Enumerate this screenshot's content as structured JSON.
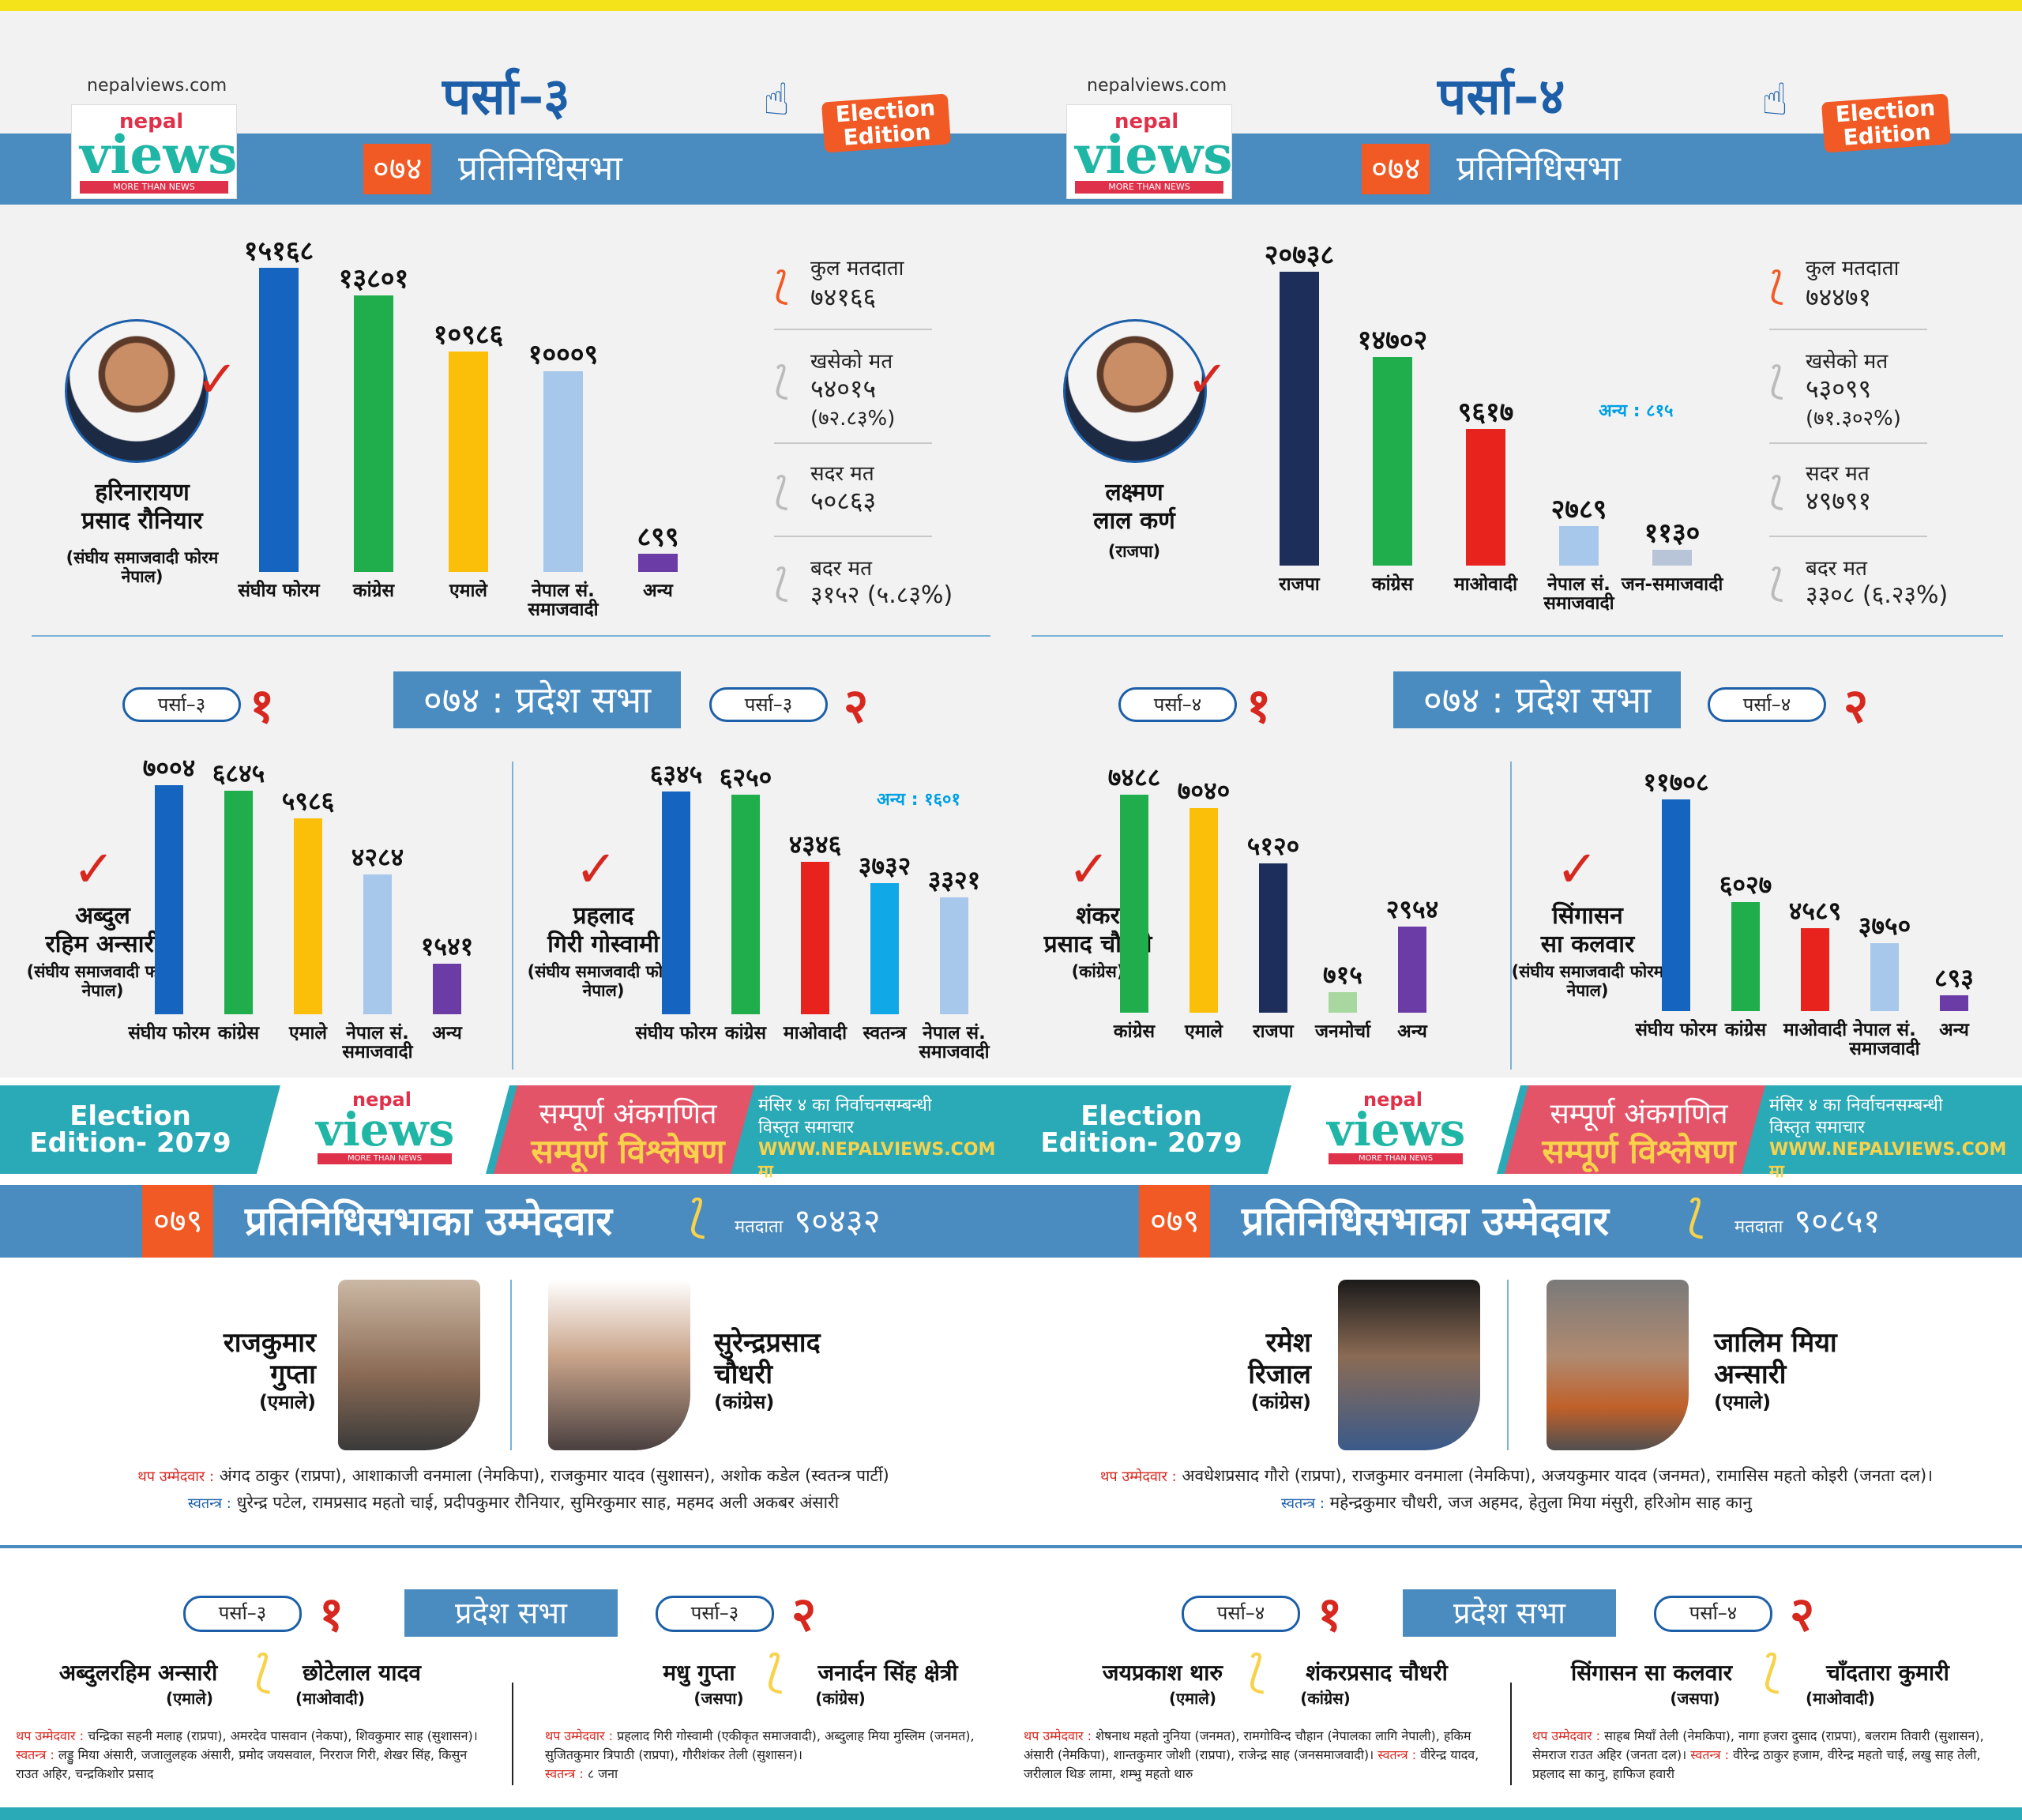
{
  "site": "nepalviews.com",
  "logo": {
    "nepal": "nepal",
    "views": "views",
    "more": "MORE THAN NEWS"
  },
  "badge": "Election Edition",
  "left": {
    "title": "पर्सा–३",
    "year": "०७४",
    "house": "प्रतिनिधिसभा",
    "winner": {
      "name1": "हरिनारायण",
      "name2": "प्रसाद रौनियार",
      "party": "(संघीय समाजवादी फोरम नेपाल)"
    },
    "stats": {
      "l1": "कुल मतदाता",
      "v1": "७४१६६",
      "l2": "खसेको मत",
      "v2": "५४०१५",
      "v2b": "(७२.८३%)",
      "l3": "सदर मत",
      "v3": "५०८६३",
      "l4": "बदर मत",
      "v4": "३१५२ (५.८३%)"
    },
    "pradesh": "०७४ : प्रदेश सभा",
    "p1pill": "पर्सा–३",
    "p1num": "१",
    "p1win": {
      "name1": "अब्दुल",
      "name2": "रहिम अन्सारी",
      "party": "(संघीय समाजवादी फोरम नेपाल)"
    },
    "p2pill": "पर्सा–३",
    "p2num": "२",
    "p2win": {
      "name1": "प्रहलाद",
      "name2": "गिरी गोस्वामी",
      "party": "(संघीय समाजवादी फोरम नेपाल)"
    },
    "p2other": "अन्य : १६०१"
  },
  "right": {
    "title": "पर्सा–४",
    "year": "०७४",
    "house": "प्रतिनिधिसभा",
    "winner": {
      "name1": "लक्ष्मण",
      "name2": "लाल कर्ण",
      "party": "(राजपा)"
    },
    "other": "अन्य : ८१५",
    "stats": {
      "l1": "कुल मतदाता",
      "v1": "७४४७१",
      "l2": "खसेको मत",
      "v2": "५३०९९",
      "v2b": "(७१.३०२%)",
      "l3": "सदर मत",
      "v3": "४९७९१",
      "l4": "बदर मत",
      "v4": "३३०८ (६.२३%)"
    },
    "pradesh": "०७४ : प्रदेश सभा",
    "p1pill": "पर्सा–४",
    "p1num": "१",
    "p1win": {
      "name1": "शंकर",
      "name2": "प्रसाद चौधरी",
      "party": "(कांग्रेस)"
    },
    "p2pill": "पर्सा–४",
    "p2num": "२",
    "p2win": {
      "name1": "सिंगासन",
      "name2": "सा कलवार",
      "party": "(संघीय समाजवादी फोरम नेपाल)"
    }
  },
  "chart_data": [
    {
      "type": "bar",
      "title": "पर्सा–३ ०७४ प्रतिनिधिसभा",
      "categories": [
        "संघीय फोरम",
        "कांग्रेस",
        "एमाले",
        "नेपाल सं. समाजवादी",
        "अन्य"
      ],
      "values": [
        15168,
        13801,
        10986,
        10009,
        899
      ],
      "value_labels": [
        "१५१६८",
        "१३८०१",
        "१०९८६",
        "१०००९",
        "८९९"
      ],
      "colors": [
        "#1565c0",
        "#1fae4b",
        "#fbbf0a",
        "#a7c8ea",
        "#6b3ba6"
      ]
    },
    {
      "type": "bar",
      "title": "पर्सा–३ प्रदेश सभा १",
      "categories": [
        "संघीय फोरम",
        "कांग्रेस",
        "एमाले",
        "नेपाल सं. समाजवादी",
        "अन्य"
      ],
      "values": [
        7004,
        6845,
        5986,
        4284,
        1541
      ],
      "value_labels": [
        "७००४",
        "६८४५",
        "५९८६",
        "४२८४",
        "१५४१"
      ],
      "colors": [
        "#1565c0",
        "#1fae4b",
        "#fbbf0a",
        "#a7c8ea",
        "#6b3ba6"
      ]
    },
    {
      "type": "bar",
      "title": "पर्सा–३ प्रदेश सभा २",
      "categories": [
        "संघीय फोरम",
        "कांग्रेस",
        "माओवादी",
        "स्वतन्त्र",
        "नेपाल सं. समाजवादी"
      ],
      "values": [
        6345,
        6250,
        4346,
        3732,
        3321
      ],
      "value_labels": [
        "६३४५",
        "६२५०",
        "४३४६",
        "३७३२",
        "३३२१"
      ],
      "colors": [
        "#1565c0",
        "#1fae4b",
        "#e8221c",
        "#10a8e6",
        "#a7c8ea"
      ]
    },
    {
      "type": "bar",
      "title": "पर्सा–४ ०७४ प्रतिनिधिसभा",
      "categories": [
        "राजपा",
        "कांग्रेस",
        "माओवादी",
        "नेपाल सं. समाजवादी",
        "जन-समाजवादी"
      ],
      "values": [
        20738,
        14702,
        9617,
        2789,
        1130
      ],
      "value_labels": [
        "२०७३८",
        "१४७०२",
        "९६१७",
        "२७८९",
        "११३०"
      ],
      "colors": [
        "#1e2e5a",
        "#1fae4b",
        "#e8221c",
        "#a7c8ea",
        "#b8c4d8"
      ]
    },
    {
      "type": "bar",
      "title": "पर्सा–४ प्रदेश सभा १",
      "categories": [
        "कांग्रेस",
        "एमाले",
        "राजपा",
        "जनमोर्चा",
        "अन्य"
      ],
      "values": [
        7488,
        7040,
        5120,
        715,
        2954
      ],
      "value_labels": [
        "७४८८",
        "७०४०",
        "५१२०",
        "७१५",
        "२९५४"
      ],
      "colors": [
        "#1fae4b",
        "#fbbf0a",
        "#1e2e5a",
        "#a8d8a0",
        "#6b3ba6"
      ]
    },
    {
      "type": "bar",
      "title": "पर्सा–४ प्रदेश सभा २",
      "categories": [
        "संघीय फोरम",
        "कांग्रेस",
        "माओवादी",
        "नेपाल सं. समाजवादी",
        "अन्य"
      ],
      "values": [
        11708,
        6027,
        4589,
        3750,
        893
      ],
      "value_labels": [
        "११७०८",
        "६०२७",
        "४५८९",
        "३७५०",
        "८९३"
      ],
      "colors": [
        "#1565c0",
        "#1fae4b",
        "#e8221c",
        "#a7c8ea",
        "#6b3ba6"
      ]
    }
  ],
  "banner": {
    "ee1": "Election",
    "ee2": "Edition- 2079",
    "t1": "सम्पूर्ण अंकगणित",
    "t2": "सम्पूर्ण विश्लेषण",
    "r1": "मंसिर ४ का निर्वाचनसम्बन्धी",
    "r2": "विस्तृत समाचार",
    "r3": "WWW.NEPALVIEWS.COM मा"
  },
  "cand_left": {
    "year": "०७९",
    "title": "प्रतिनिधिसभाका उम्मेदवार",
    "voter_label": "मतदाता",
    "voters": "९०४३२",
    "c1": {
      "n1": "राजकुमार",
      "n2": "गुप्ता",
      "party": "(एमाले)"
    },
    "c2": {
      "n1": "सुरेन्द्रप्रसाद",
      "n2": "चौधरी",
      "party": "(कांग्रेस)"
    },
    "extra_label": "थप उम्मेदवार :",
    "extra": "अंगद ठाकुर (राप्रपा), आशाकाजी वनमाला (नेमकिपा), राजकुमार यादव (सुशासन), अशोक कडेल (स्वतन्त्र पार्टी)",
    "ind_label": "स्वतन्त्र :",
    "ind": "धुरेन्द्र पटेल, रामप्रसाद महतो चाई, प्रदीपकुमार रौनियार, सुमिरकुमार साह, महमद अली अकबर अंसारी",
    "pradesh": "प्रदेश सभा",
    "p1pill": "पर्सा–३",
    "p1num": "१",
    "p2pill": "पर्सा–३",
    "p2num": "२",
    "p1a": {
      "n": "अब्दुलरहिम अन्सारी",
      "p": "(एमाले)"
    },
    "p1b": {
      "n": "छोटेलाल यादव",
      "p": "(माओवादी)"
    },
    "p2a": {
      "n": "मधु गुप्ता",
      "p": "(जसपा)"
    },
    "p2b": {
      "n": "जनार्दन सिंह क्षेत्री",
      "p": "(कांग्रेस)"
    },
    "p1extra_label": "थप उम्मेदवार :",
    "p1extra": "चन्द्रिका सहनी मलाह (राप्रपा), अमरदेव पासवान (नेकपा), शिवकुमार साह (सुशासन)।",
    "p1ind_label": "स्वतन्त्र :",
    "p1ind": "लड्डु मिया अंसारी, जजालुलहक अंसारी, प्रमोद जयसवाल, निरराज गिरी, शेखर सिंह, किसुन राउत अहिर, चन्द्रकिशोर प्रसाद",
    "p2extra_label": "थप उम्मेदवार :",
    "p2extra": "प्रहलाद गिरी गोस्वामी (एकीकृत समाजवादी), अब्दुलाह मिया मुस्लिम (जनमत), सुजितकुमार त्रिपाठी (राप्रपा), गौरीशंकर तेली (सुशासन)।",
    "p2ind_label": "स्वतन्त्र :",
    "p2ind": "८ जना"
  },
  "cand_right": {
    "year": "०७९",
    "title": "प्रतिनिधिसभाका उम्मेदवार",
    "voter_label": "मतदाता",
    "voters": "९०८५१",
    "c1": {
      "n1": "रमेश",
      "n2": "रिजाल",
      "party": "(कांग्रेस)"
    },
    "c2": {
      "n1": "जालिम मिया",
      "n2": "अन्सारी",
      "party": "(एमाले)"
    },
    "extra_label": "थप उम्मेदवार :",
    "extra": "अवधेशप्रसाद गौरो (राप्रपा), राजकुमार वनमाला (नेमकिपा), अजयकुमार यादव (जनमत), रामासिस महतो कोइरी (जनता दल)।",
    "ind_label": "स्वतन्त्र :",
    "ind": "महेन्द्रकुमार चौधरी, जज अहमद, हेतुला मिया मंसुरी, हरिओम साह कानु",
    "pradesh": "प्रदेश सभा",
    "p1pill": "पर्सा–४",
    "p1num": "१",
    "p2pill": "पर्सा–४",
    "p2num": "२",
    "p1a": {
      "n": "जयप्रकाश थारु",
      "p": "(एमाले)"
    },
    "p1b": {
      "n": "शंकरप्रसाद चौधरी",
      "p": "(कांग्रेस)"
    },
    "p2a": {
      "n": "सिंगासन सा कलवार",
      "p": "(जसपा)"
    },
    "p2b": {
      "n": "चाँदतारा कुमारी",
      "p": "(माओवादी)"
    },
    "p1extra_label": "थप उम्मेदवार :",
    "p1extra": "शेषनाथ महतो नुनिया (जनमत), रामगोविन्द चौहान (नेपालका लागि नेपाली), हकिम अंसारी (नेमकिपा), शान्तकुमार जोशी (राप्रपा), राजेन्द्र साह (जनसमाजवादी)।",
    "p1ind_label": "स्वतन्त्र :",
    "p1ind": "वीरेन्द्र यादव, जरीलाल थिङ लामा, शम्भु महतो थारु",
    "p2extra_label": "थप उम्मेदवार :",
    "p2extra": "साहब मियाँ तेली (नेमकिपा), नागा हजरा दुसाद (राप्रपा), बलराम तिवारी (सुशासन), सेमराज राउत अहिर (जनता दल)।",
    "p2ind_label": "स्वतन्त्र :",
    "p2ind": "वीरेन्द्र ठाकुर हजाम, वीरेन्द्र महतो चाई, लखु साह तेली, प्रहलाद सा कानु, हाफिज हवारी"
  }
}
